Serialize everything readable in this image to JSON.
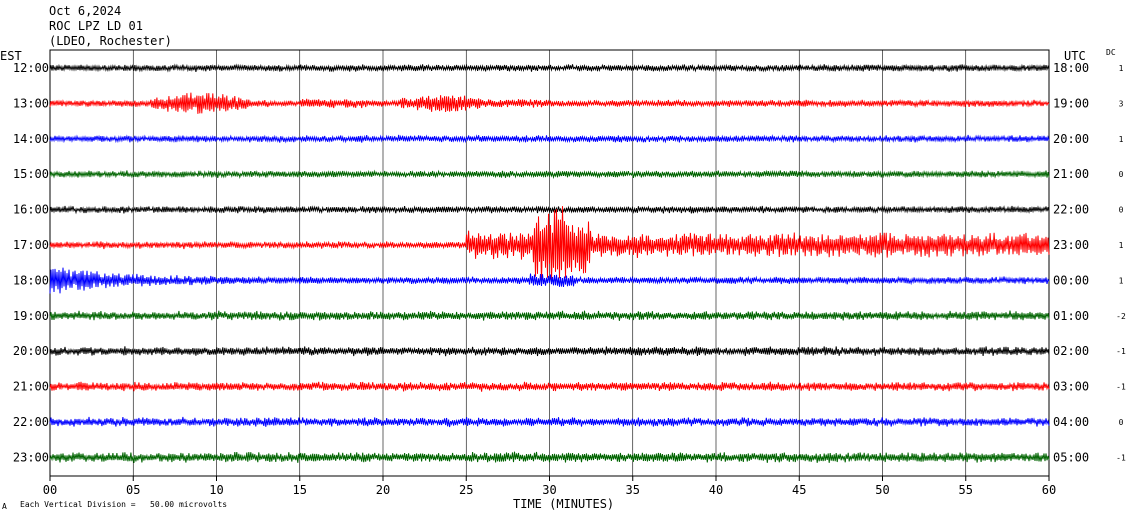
{
  "header": {
    "date": "Oct 6,2024",
    "station": "ROC LPZ LD 01",
    "network": "(LDEO, Rochester)"
  },
  "left_zone": "EST",
  "right_zone": "UTC",
  "dc_header": "DC",
  "footer": {
    "mark": "A",
    "scale_note": "Each Vertical Division =   50.00 microvolts"
  },
  "colors": [
    "#000000",
    "#ff0000",
    "#0000ff",
    "#006400"
  ],
  "chart_data": {
    "type": "line",
    "title": "",
    "xlabel": "TIME (MINUTES)",
    "xlim": [
      0,
      60
    ],
    "x_ticks": [
      "00",
      "05",
      "10",
      "15",
      "20",
      "25",
      "30",
      "35",
      "40",
      "45",
      "50",
      "55",
      "60"
    ],
    "grid": true,
    "rows": [
      {
        "est": "12:00",
        "utc": "18:00",
        "dc": "1",
        "activity": "quiet"
      },
      {
        "est": "13:00",
        "utc": "19:00",
        "dc": "3",
        "activity": "bursts 7-12 and 21-26 min"
      },
      {
        "est": "14:00",
        "utc": "20:00",
        "dc": "1",
        "activity": "quiet"
      },
      {
        "est": "15:00",
        "utc": "21:00",
        "dc": "0",
        "activity": "quiet"
      },
      {
        "est": "16:00",
        "utc": "22:00",
        "dc": "0",
        "activity": "quiet"
      },
      {
        "est": "17:00",
        "utc": "23:00",
        "dc": "1",
        "activity": "earthquake arrivals from ~25 min, peaks ~29-32 min"
      },
      {
        "est": "18:00",
        "utc": "00:00",
        "dc": "1",
        "activity": "coda decaying 0-24 min"
      },
      {
        "est": "19:00",
        "utc": "01:00",
        "dc": "-2",
        "activity": "noise"
      },
      {
        "est": "20:00",
        "utc": "02:00",
        "dc": "-1",
        "activity": "noise"
      },
      {
        "est": "21:00",
        "utc": "03:00",
        "dc": "-1",
        "activity": "noise"
      },
      {
        "est": "22:00",
        "utc": "04:00",
        "dc": "0",
        "activity": "noise"
      },
      {
        "est": "23:00",
        "utc": "05:00",
        "dc": "-1",
        "activity": "noise"
      }
    ]
  }
}
